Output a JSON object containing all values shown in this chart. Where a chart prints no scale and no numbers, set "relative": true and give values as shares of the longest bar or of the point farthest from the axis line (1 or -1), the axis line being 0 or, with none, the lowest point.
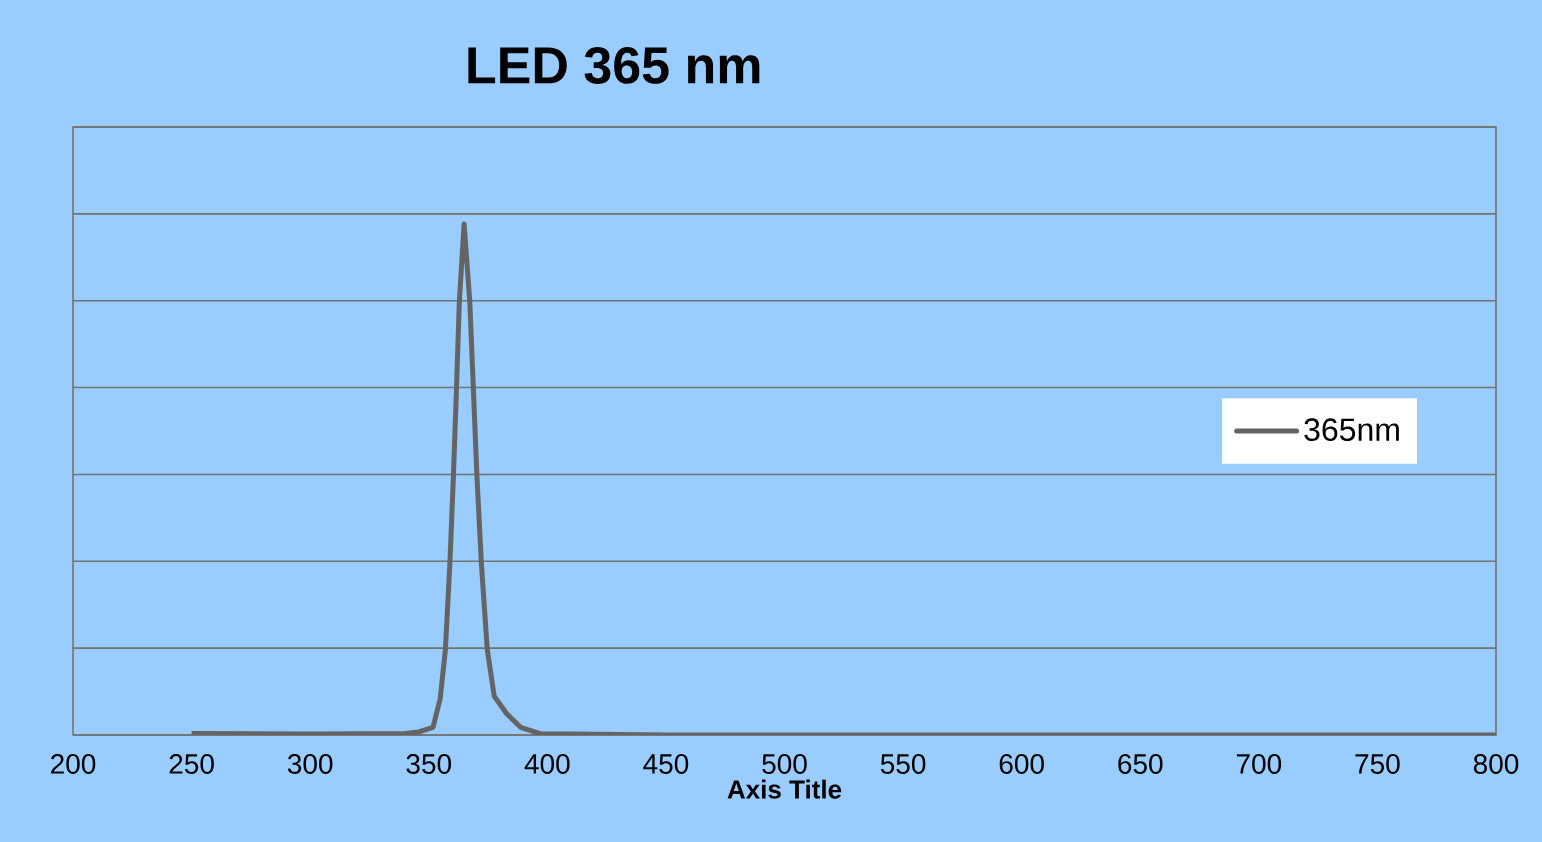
{
  "chart_data": {
    "type": "line",
    "title": "LED 365 nm",
    "xlabel": "Axis Title",
    "relative": true,
    "xlim": [
      200,
      800
    ],
    "xticks": [
      200,
      250,
      300,
      350,
      400,
      450,
      500,
      550,
      600,
      650,
      700,
      750,
      800
    ],
    "grid": "y",
    "legend": "right",
    "series": [
      {
        "name": "365nm",
        "color": "#646464",
        "x": [
          250,
          300,
          340,
          345.8,
          351.8,
          354.8,
          357.0,
          358.9,
          360.4,
          361.7,
          362.9,
          364.9,
          367.3,
          368.8,
          370.3,
          372.2,
          374.7,
          377.6,
          382.8,
          388.7,
          397.4,
          410,
          450,
          500,
          600,
          700,
          800
        ],
        "values": [
          0.003,
          0.002,
          0.003,
          0.006,
          0.015,
          0.071,
          0.166,
          0.335,
          0.507,
          0.679,
          0.849,
          1.0,
          0.849,
          0.679,
          0.507,
          0.335,
          0.166,
          0.076,
          0.042,
          0.015,
          0.002,
          0.002,
          0.0,
          0.0,
          0.0,
          0.0,
          0.0
        ]
      }
    ]
  }
}
